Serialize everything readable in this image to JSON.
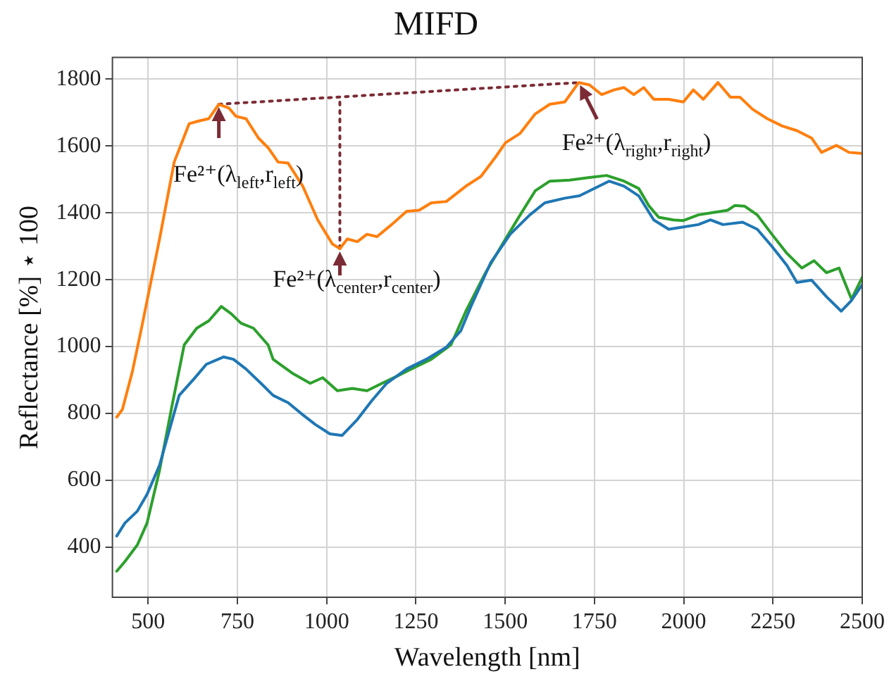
{
  "chart_data": {
    "type": "line",
    "title": "MIFD",
    "xlabel": "Wavelength [nm]",
    "ylabel": "Reflectance [%] ⋆ 100",
    "xlim": [
      400,
      2500
    ],
    "xticks": [
      500,
      750,
      1000,
      1250,
      1500,
      1750,
      2000,
      2250,
      2500
    ],
    "ylim": [
      250,
      1865
    ],
    "yticks": [
      400,
      600,
      800,
      1000,
      1200,
      1400,
      1600,
      1800
    ],
    "grid": true,
    "legend": false,
    "marker": "none",
    "line_style": "solid",
    "annotations": [
      {
        "text": "Fe²⁺(λ$_{left}$,r$_{left}$)",
        "x": 698,
        "y": 1725
      },
      {
        "text": "Fe²⁺(λ$_{center}$,r$_{center}$)",
        "x": 1037,
        "y": 1293
      },
      {
        "text": "Fe²⁺(λ$_{right}$,r$_{right}$)",
        "x": 1706,
        "y": 1790
      }
    ],
    "series": [
      {
        "color": "#1f77b4",
        "x": [
          412,
          435,
          470,
          497,
          532,
          566,
          587,
          629,
          663,
          711,
          739,
          774,
          816,
          850,
          892,
          933,
          968,
          1009,
          1043,
          1086,
          1127,
          1168,
          1224,
          1279,
          1335,
          1376,
          1404,
          1459,
          1514,
          1569,
          1611,
          1667,
          1708,
          1736,
          1791,
          1833,
          1874,
          1916,
          1958,
          1999,
          2041,
          2075,
          2110,
          2165,
          2206,
          2247,
          2289,
          2317,
          2358,
          2400,
          2441,
          2469,
          2500
        ],
        "values": [
          433,
          472,
          508,
          558,
          645,
          775,
          854,
          904,
          947,
          969,
          962,
          933,
          890,
          854,
          832,
          796,
          767,
          739,
          734,
          782,
          839,
          890,
          933,
          962,
          998,
          1048,
          1120,
          1250,
          1336,
          1394,
          1430,
          1444,
          1451,
          1466,
          1495,
          1480,
          1451,
          1379,
          1351,
          1358,
          1365,
          1379,
          1365,
          1372,
          1351,
          1300,
          1243,
          1192,
          1199,
          1149,
          1106,
          1137,
          1185
        ]
      },
      {
        "color": "#ff7f0e",
        "x": [
          412,
          428,
          456,
          483,
          532,
          573,
          615,
          642,
          670,
          698,
          726,
          746,
          774,
          809,
          836,
          864,
          892,
          933,
          975,
          1016,
          1037,
          1058,
          1086,
          1113,
          1141,
          1182,
          1224,
          1259,
          1293,
          1335,
          1390,
          1432,
          1473,
          1501,
          1542,
          1584,
          1625,
          1667,
          1706,
          1736,
          1770,
          1805,
          1833,
          1860,
          1888,
          1916,
          1958,
          1999,
          2027,
          2055,
          2096,
          2131,
          2158,
          2193,
          2234,
          2276,
          2317,
          2358,
          2386,
          2428,
          2463,
          2498
        ],
        "values": [
          789,
          812,
          926,
          1063,
          1322,
          1552,
          1667,
          1675,
          1682,
          1725,
          1714,
          1689,
          1682,
          1624,
          1595,
          1552,
          1549,
          1480,
          1379,
          1307,
          1293,
          1322,
          1314,
          1336,
          1329,
          1365,
          1405,
          1408,
          1430,
          1434,
          1480,
          1509,
          1567,
          1610,
          1638,
          1696,
          1725,
          1732,
          1790,
          1783,
          1754,
          1768,
          1775,
          1754,
          1775,
          1740,
          1740,
          1732,
          1768,
          1740,
          1790,
          1746,
          1746,
          1710,
          1682,
          1660,
          1646,
          1624,
          1581,
          1602,
          1581,
          1578
        ]
      },
      {
        "color": "#2ca02c",
        "x": [
          412,
          435,
          470,
          497,
          532,
          566,
          601,
          636,
          670,
          705,
          733,
          760,
          795,
          836,
          850,
          906,
          954,
          989,
          1030,
          1072,
          1113,
          1155,
          1196,
          1237,
          1293,
          1348,
          1390,
          1445,
          1501,
          1542,
          1584,
          1625,
          1680,
          1736,
          1784,
          1833,
          1874,
          1902,
          1930,
          1971,
          1999,
          2041,
          2082,
          2123,
          2143,
          2171,
          2206,
          2247,
          2289,
          2331,
          2365,
          2400,
          2435,
          2470,
          2500
        ],
        "values": [
          328,
          357,
          407,
          472,
          630,
          818,
          1005,
          1055,
          1077,
          1120,
          1098,
          1070,
          1055,
          1005,
          962,
          919,
          890,
          907,
          868,
          875,
          868,
          890,
          911,
          933,
          962,
          1005,
          1106,
          1221,
          1322,
          1394,
          1466,
          1495,
          1498,
          1506,
          1512,
          1495,
          1473,
          1422,
          1387,
          1379,
          1377,
          1394,
          1401,
          1408,
          1422,
          1420,
          1394,
          1336,
          1279,
          1235,
          1257,
          1221,
          1235,
          1142,
          1207
        ]
      },
      {
        "type": "line",
        "color": "#7b2b35",
        "line_style": "dotted",
        "x": [
          698,
          1706
        ],
        "values": [
          1725,
          1790
        ]
      },
      {
        "type": "line",
        "color": "#7b2b35",
        "line_style": "dotted",
        "x": [
          1037,
          1037
        ],
        "values": [
          1293,
          1747
        ]
      }
    ]
  }
}
